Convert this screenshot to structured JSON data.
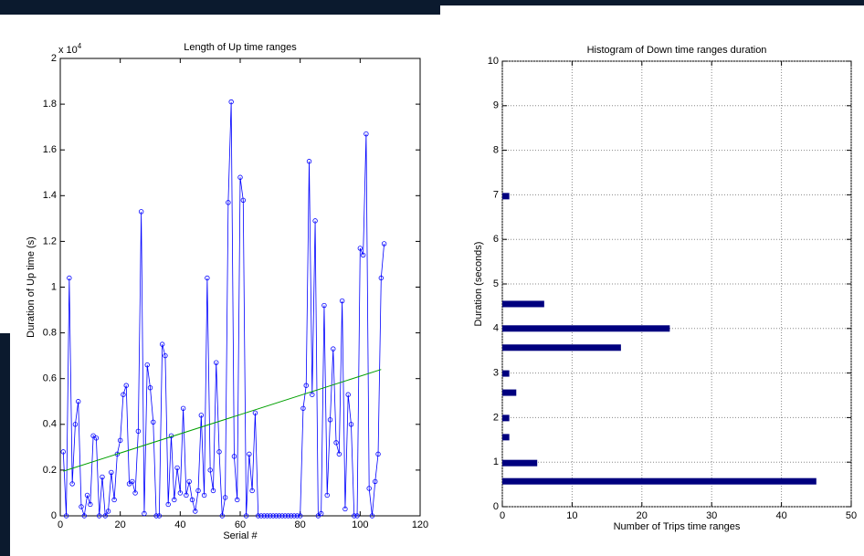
{
  "chart_data": [
    {
      "type": "line",
      "title": "Length of Up time ranges",
      "xlabel": "Serial #",
      "ylabel": "Duration of Up time (s)",
      "y_multiplier": "x 10",
      "y_multiplier_exp": "4",
      "x": [
        1,
        2,
        3,
        4,
        5,
        6,
        7,
        8,
        9,
        10,
        11,
        12,
        13,
        14,
        15,
        16,
        17,
        18,
        19,
        20,
        21,
        22,
        23,
        24,
        25,
        26,
        27,
        28,
        29,
        30,
        31,
        32,
        33,
        34,
        35,
        36,
        37,
        38,
        39,
        40,
        41,
        42,
        43,
        44,
        45,
        46,
        47,
        48,
        49,
        50,
        51,
        52,
        53,
        54,
        55,
        56,
        57,
        58,
        59,
        60,
        61,
        62,
        63,
        64,
        65,
        66,
        67,
        68,
        69,
        70,
        71,
        72,
        73,
        74,
        75,
        76,
        77,
        78,
        79,
        80,
        81,
        82,
        83,
        84,
        85,
        86,
        87,
        88,
        89,
        90,
        91,
        92,
        93,
        94,
        95,
        96,
        97,
        98,
        99,
        100,
        101,
        102,
        103,
        104,
        105,
        106,
        107,
        108
      ],
      "series": [
        {
          "color": "#0000ff",
          "values": [
            0.28,
            0.0,
            1.04,
            0.14,
            0.4,
            0.5,
            0.04,
            0.0,
            0.09,
            0.05,
            0.35,
            0.34,
            0.0,
            0.17,
            0.0,
            0.02,
            0.19,
            0.07,
            0.27,
            0.33,
            0.53,
            0.57,
            0.14,
            0.15,
            0.1,
            0.37,
            1.33,
            0.01,
            0.66,
            0.56,
            0.41,
            0.0,
            0.0,
            0.75,
            0.7,
            0.05,
            0.35,
            0.07,
            0.21,
            0.1,
            0.47,
            0.09,
            0.15,
            0.07,
            0.02,
            0.11,
            0.44,
            0.09,
            1.04,
            0.2,
            0.11,
            0.67,
            0.28,
            0.0,
            0.08,
            1.37,
            1.81,
            0.26,
            0.07,
            1.48,
            1.38,
            0.0,
            0.27,
            0.11,
            0.45,
            0.0,
            0.0,
            0.0,
            0.0,
            0.0,
            0.0,
            0.0,
            0.0,
            0.0,
            0.0,
            0.0,
            0.0,
            0.0,
            0.0,
            0.0,
            0.47,
            0.57,
            1.55,
            0.53,
            1.29,
            0.0,
            0.01,
            0.92,
            0.09,
            0.42,
            0.73,
            0.32,
            0.27,
            0.94,
            0.03,
            0.53,
            0.4,
            0.0,
            0.0,
            1.17,
            1.14,
            1.67,
            0.12,
            0.0,
            0.15,
            0.27,
            1.04,
            1.19
          ]
        }
      ],
      "trend": {
        "color": "#00a000",
        "x": [
          1,
          107
        ],
        "values": [
          0.195,
          0.64
        ]
      },
      "xlim": [
        0,
        120
      ],
      "xticks": [
        0,
        20,
        40,
        60,
        80,
        100,
        120
      ],
      "ylim": [
        0,
        2
      ],
      "yticks": [
        0,
        0.2,
        0.4,
        0.6,
        0.8,
        1,
        1.2,
        1.4,
        1.6,
        1.8,
        2
      ],
      "grid": false
    },
    {
      "type": "barh",
      "title": "Histogram of Down time ranges duration",
      "xlabel": "Number of Trips time ranges",
      "ylabel": "Duration (seconds)",
      "y": [
        0.57,
        0.98,
        1.56,
        1.99,
        2.56,
        2.99,
        3.57,
        4.0,
        4.55,
        6.97
      ],
      "values": [
        45,
        5,
        1,
        1,
        2,
        1,
        17,
        24,
        6,
        1
      ],
      "color": "#00007f",
      "xlim": [
        0,
        50
      ],
      "xticks": [
        0,
        10,
        20,
        30,
        40,
        50
      ],
      "ylim": [
        0,
        10
      ],
      "yticks": [
        0,
        1,
        2,
        3,
        4,
        5,
        6,
        7,
        8,
        9,
        10
      ],
      "grid": true
    }
  ]
}
